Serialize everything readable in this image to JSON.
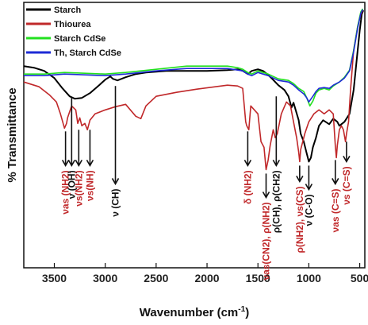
{
  "chart_data": {
    "type": "line",
    "xlabel": "Wavenumber (cm",
    "xlabel_sup": "-1",
    "xlabel_close": ")",
    "ylabel": "% Transmittance",
    "xlim": [
      3800,
      450
    ],
    "x_reversed": true,
    "x_ticks": [
      "3500",
      "3000",
      "2500",
      "2000",
      "1500",
      "1000",
      "500"
    ],
    "x_tick_values": [
      3500,
      3000,
      2500,
      2000,
      1500,
      1000,
      500
    ],
    "grid": false,
    "legend_position": "top-left",
    "series": [
      {
        "name": "Starch",
        "color": "#000000",
        "points": [
          [
            3800,
            80
          ],
          [
            3700,
            82
          ],
          [
            3600,
            86
          ],
          [
            3500,
            95
          ],
          [
            3420,
            108
          ],
          [
            3350,
            118
          ],
          [
            3300,
            121
          ],
          [
            3230,
            120
          ],
          [
            3150,
            114
          ],
          [
            3060,
            104
          ],
          [
            3000,
            97
          ],
          [
            2950,
            93
          ],
          [
            2925,
            96
          ],
          [
            2880,
            98
          ],
          [
            2800,
            94
          ],
          [
            2700,
            90
          ],
          [
            2600,
            88
          ],
          [
            2400,
            86
          ],
          [
            2200,
            86
          ],
          [
            2000,
            86
          ],
          [
            1800,
            85
          ],
          [
            1700,
            84
          ],
          [
            1650,
            86
          ],
          [
            1600,
            90
          ],
          [
            1560,
            86
          ],
          [
            1500,
            84
          ],
          [
            1450,
            86
          ],
          [
            1410,
            90
          ],
          [
            1360,
            96
          ],
          [
            1300,
            104
          ],
          [
            1240,
            110
          ],
          [
            1200,
            118
          ],
          [
            1170,
            132
          ],
          [
            1150,
            126
          ],
          [
            1100,
            148
          ],
          [
            1080,
            165
          ],
          [
            1050,
            175
          ],
          [
            1020,
            190
          ],
          [
            1000,
            200
          ],
          [
            980,
            195
          ],
          [
            960,
            182
          ],
          [
            930,
            170
          ],
          [
            900,
            155
          ],
          [
            860,
            148
          ],
          [
            800,
            153
          ],
          [
            760,
            146
          ],
          [
            720,
            150
          ],
          [
            700,
            155
          ],
          [
            650,
            150
          ],
          [
            600,
            140
          ],
          [
            560,
            110
          ],
          [
            520,
            60
          ],
          [
            500,
            35
          ],
          [
            480,
            15
          ],
          [
            465,
            10
          ]
        ]
      },
      {
        "name": "Thiourea",
        "color": "#c0282a",
        "points": [
          [
            3800,
            100
          ],
          [
            3650,
            106
          ],
          [
            3550,
            116
          ],
          [
            3480,
            125
          ],
          [
            3440,
            140
          ],
          [
            3400,
            158
          ],
          [
            3380,
            152
          ],
          [
            3370,
            145
          ],
          [
            3330,
            130
          ],
          [
            3290,
            135
          ],
          [
            3270,
            152
          ],
          [
            3250,
            145
          ],
          [
            3230,
            155
          ],
          [
            3200,
            152
          ],
          [
            3175,
            160
          ],
          [
            3150,
            148
          ],
          [
            3100,
            140
          ],
          [
            3000,
            135
          ],
          [
            2900,
            131
          ],
          [
            2800,
            128
          ],
          [
            2700,
            143
          ],
          [
            2650,
            146
          ],
          [
            2600,
            130
          ],
          [
            2500,
            118
          ],
          [
            2300,
            113
          ],
          [
            2100,
            109
          ],
          [
            1800,
            104
          ],
          [
            1700,
            105
          ],
          [
            1650,
            108
          ],
          [
            1620,
            150
          ],
          [
            1610,
            155
          ],
          [
            1590,
            160
          ],
          [
            1570,
            130
          ],
          [
            1500,
            140
          ],
          [
            1470,
            175
          ],
          [
            1440,
            182
          ],
          [
            1420,
            210
          ],
          [
            1400,
            198
          ],
          [
            1380,
            180
          ],
          [
            1350,
            160
          ],
          [
            1330,
            170
          ],
          [
            1310,
            165
          ],
          [
            1270,
            140
          ],
          [
            1220,
            125
          ],
          [
            1180,
            130
          ],
          [
            1150,
            150
          ],
          [
            1120,
            170
          ],
          [
            1100,
            188
          ],
          [
            1090,
            200
          ],
          [
            1080,
            185
          ],
          [
            1060,
            175
          ],
          [
            1040,
            165
          ],
          [
            1000,
            150
          ],
          [
            950,
            140
          ],
          [
            900,
            135
          ],
          [
            850,
            140
          ],
          [
            800,
            135
          ],
          [
            760,
            140
          ],
          [
            740,
            180
          ],
          [
            730,
            195
          ],
          [
            720,
            180
          ],
          [
            700,
            160
          ],
          [
            680,
            155
          ],
          [
            660,
            160
          ],
          [
            640,
            175
          ],
          [
            630,
            165
          ],
          [
            610,
            150
          ],
          [
            590,
            110
          ],
          [
            560,
            60
          ],
          [
            520,
            30
          ],
          [
            490,
            15
          ],
          [
            470,
            10
          ]
        ]
      },
      {
        "name": "Starch CdSe",
        "color": "#22e01f",
        "points": [
          [
            3800,
            90
          ],
          [
            3600,
            90
          ],
          [
            3400,
            88
          ],
          [
            3200,
            89
          ],
          [
            3000,
            90
          ],
          [
            2800,
            88
          ],
          [
            2500,
            84
          ],
          [
            2200,
            80
          ],
          [
            2000,
            80
          ],
          [
            1800,
            80
          ],
          [
            1700,
            82
          ],
          [
            1650,
            84
          ],
          [
            1600,
            88
          ],
          [
            1560,
            90
          ],
          [
            1500,
            86
          ],
          [
            1400,
            90
          ],
          [
            1300,
            96
          ],
          [
            1200,
            98
          ],
          [
            1150,
            102
          ],
          [
            1100,
            108
          ],
          [
            1050,
            112
          ],
          [
            1020,
            120
          ],
          [
            990,
            130
          ],
          [
            960,
            124
          ],
          [
            930,
            114
          ],
          [
            900,
            110
          ],
          [
            850,
            108
          ],
          [
            800,
            110
          ],
          [
            760,
            105
          ],
          [
            700,
            100
          ],
          [
            650,
            94
          ],
          [
            600,
            85
          ],
          [
            560,
            60
          ],
          [
            520,
            30
          ],
          [
            490,
            12
          ],
          [
            470,
            8
          ]
        ]
      },
      {
        "name": "Th, Starch CdSe",
        "color": "#1e2bd6",
        "points": [
          [
            3800,
            92
          ],
          [
            3600,
            92
          ],
          [
            3400,
            90
          ],
          [
            3200,
            91
          ],
          [
            3000,
            92
          ],
          [
            2800,
            90
          ],
          [
            2500,
            86
          ],
          [
            2200,
            83
          ],
          [
            2000,
            83
          ],
          [
            1800,
            83
          ],
          [
            1700,
            85
          ],
          [
            1650,
            86
          ],
          [
            1600,
            90
          ],
          [
            1560,
            92
          ],
          [
            1500,
            88
          ],
          [
            1400,
            92
          ],
          [
            1300,
            98
          ],
          [
            1200,
            100
          ],
          [
            1150,
            104
          ],
          [
            1100,
            110
          ],
          [
            1050,
            115
          ],
          [
            1020,
            120
          ],
          [
            1000,
            125
          ],
          [
            960,
            118
          ],
          [
            930,
            112
          ],
          [
            900,
            108
          ],
          [
            850,
            107
          ],
          [
            800,
            108
          ],
          [
            760,
            104
          ],
          [
            700,
            100
          ],
          [
            650,
            95
          ],
          [
            600,
            86
          ],
          [
            560,
            62
          ],
          [
            520,
            32
          ],
          [
            490,
            14
          ],
          [
            470,
            9
          ]
        ]
      }
    ],
    "annotations": [
      {
        "lines": [
          "ν",
          "as",
          " (NH",
          "2",
          ")"
        ],
        "label": "νas (NH2)",
        "color": "red",
        "x": 3390,
        "arrow_y1": 162,
        "arrow_y2": 205
      },
      {
        "label": "ν (OH)",
        "color": "black",
        "x": 3330,
        "arrow_y1": 120,
        "arrow_y2": 205
      },
      {
        "label": "νs(NH2)",
        "color": "red",
        "x": 3260,
        "arrow_y1": 160,
        "arrow_y2": 205
      },
      {
        "label": "νs(NH)",
        "color": "red",
        "x": 3150,
        "arrow_y1": 160,
        "arrow_y2": 205
      },
      {
        "label": "ν (CH)",
        "color": "black",
        "x": 2900,
        "arrow_y1": 105,
        "arrow_y2": 228
      },
      {
        "label": "δ (NH2)",
        "color": "red",
        "x": 1600,
        "arrow_y1": 162,
        "arrow_y2": 205
      },
      {
        "label": "νas(CN2), ρ(NH2)",
        "color": "red",
        "x": 1420,
        "arrow_y1": 215,
        "arrow_y2": 245
      },
      {
        "label": "ρ(CH), ρ(CH2)",
        "color": "black",
        "x": 1320,
        "arrow_y1": 118,
        "arrow_y2": 205
      },
      {
        "label": "ρ(NH2), νs(CS)",
        "color": "red",
        "x": 1090,
        "arrow_y1": 205,
        "arrow_y2": 225
      },
      {
        "label": "ν (C-O)",
        "color": "black",
        "x": 1000,
        "arrow_y1": 205,
        "arrow_y2": 235
      },
      {
        "label": "νas (C=S)",
        "color": "red",
        "x": 740,
        "arrow_y1": 198,
        "arrow_y2": 228
      },
      {
        "label": "νs (C=S)",
        "color": "red",
        "x": 630,
        "arrow_y1": 175,
        "arrow_y2": 200
      }
    ]
  }
}
